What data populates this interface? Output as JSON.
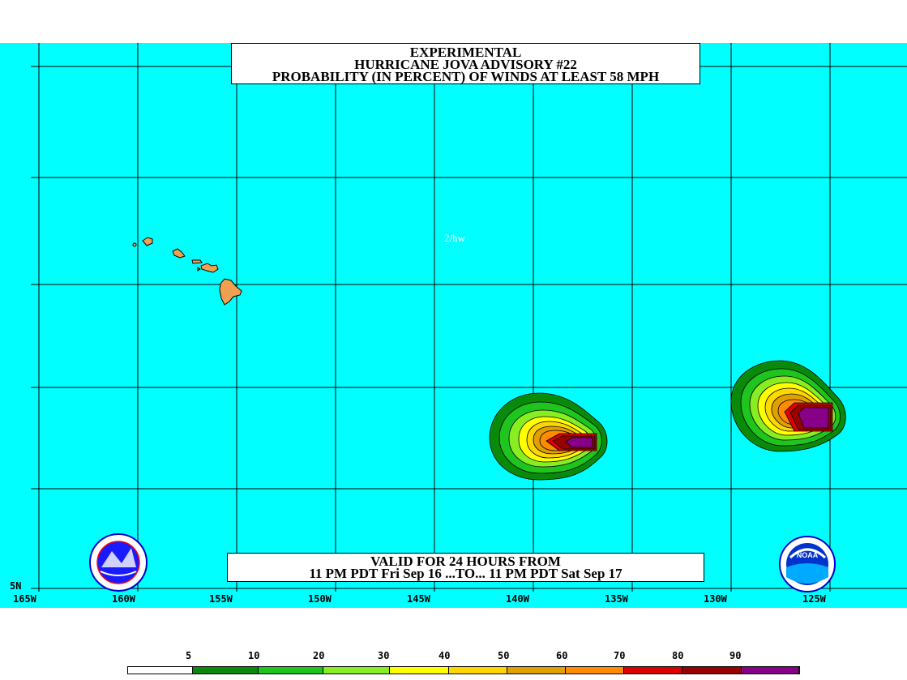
{
  "title": {
    "line1": "EXPERIMENTAL",
    "line2": "HURRICANE JOVA ADVISORY #22",
    "line3": "PROBABILITY (IN PERCENT) OF WINDS AT LEAST 58 MPH"
  },
  "valid": {
    "line1": "VALID FOR 24 HOURS FROM",
    "line2": "11 PM PDT Fri Sep 16 ...TO... 11 PM PDT Sat Sep 17"
  },
  "credit": "2/hw",
  "axes": {
    "longitude_labels": [
      "165W",
      "160W",
      "155W",
      "150W",
      "145W",
      "140W",
      "135W",
      "130W",
      "125W"
    ],
    "latitude_labels": [
      "5N"
    ]
  },
  "legend": {
    "labels": [
      "5",
      "10",
      "20",
      "30",
      "40",
      "50",
      "60",
      "70",
      "80",
      "90"
    ],
    "colors": [
      "#ffffff",
      "#0a8a0a",
      "#1fc41f",
      "#88ee22",
      "#ffff00",
      "#ffd700",
      "#e0a000",
      "#ff8c00",
      "#dd0000",
      "#990000",
      "#880088"
    ]
  },
  "colors": {
    "ocean": "#00ffff",
    "land": "#f0a050",
    "grid": "#000000"
  },
  "logos": {
    "left": "NATIONAL WEATHER SERVICE",
    "right": "NOAA"
  }
}
